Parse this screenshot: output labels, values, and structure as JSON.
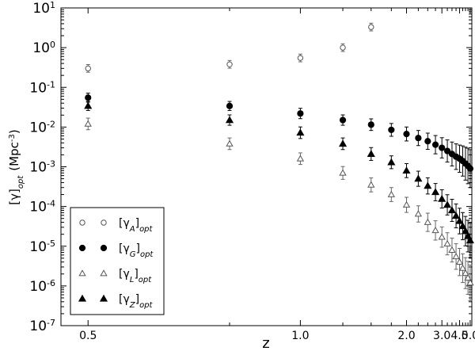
{
  "chart_data": {
    "type": "scatter",
    "xlabel": "z",
    "ylabel_base": "[γ]",
    "ylabel_sub": "opt",
    "ylabel_unit": "(Mpc",
    "ylabel_exp": "-3",
    "ylabel_close": ")",
    "x_scale": "reciprocal",
    "y_scale": "log",
    "xlim": [
      0.47,
      5.2
    ],
    "ylim": [
      1e-07,
      10
    ],
    "x_ticks": [
      0.5,
      1.0,
      2.0,
      3.0,
      4.0,
      5.0
    ],
    "x_tick_labels": [
      "0.5",
      "1.0",
      "2.0",
      "3.0",
      "4.0",
      "5.0"
    ],
    "y_ticks": [
      {
        "value": 10,
        "base": "10",
        "exp": "1"
      },
      {
        "value": 1,
        "base": "10",
        "exp": "0"
      },
      {
        "value": 0.1,
        "base": "10",
        "exp": "-1"
      },
      {
        "value": 0.01,
        "base": "10",
        "exp": "-2"
      },
      {
        "value": 0.001,
        "base": "10",
        "exp": "-3"
      },
      {
        "value": 0.0001,
        "base": "10",
        "exp": "-4"
      },
      {
        "value": 1e-05,
        "base": "10",
        "exp": "-5"
      },
      {
        "value": 1e-06,
        "base": "10",
        "exp": "-6"
      },
      {
        "value": 1e-07,
        "base": "10",
        "exp": "-7"
      }
    ],
    "grid": false,
    "legend_position": "bottom-left",
    "series": [
      {
        "key": "A",
        "label_base": "[γ",
        "label_sub": "A",
        "label_close": "]",
        "label_opt": "opt",
        "marker": "circle",
        "filled": false,
        "color": "#555555",
        "x": [
          0.5,
          0.75,
          1.0,
          1.25,
          1.5
        ],
        "y": [
          0.3,
          0.38,
          0.55,
          1.0,
          3.3
        ],
        "err_factor": 1.25
      },
      {
        "key": "G",
        "label_base": "[γ",
        "label_sub": "G",
        "label_close": "]",
        "label_opt": "opt",
        "marker": "circle",
        "filled": true,
        "color": "#000000",
        "x": [
          0.5,
          0.75,
          1.0,
          1.25,
          1.5,
          1.75,
          2.0,
          2.25,
          2.5,
          2.75,
          3.0,
          3.25,
          3.5,
          3.75,
          4.0,
          4.25,
          4.5,
          4.75,
          5.0
        ],
        "y": [
          0.055,
          0.034,
          0.022,
          0.015,
          0.0115,
          0.0085,
          0.0067,
          0.0053,
          0.0044,
          0.0036,
          0.003,
          0.0025,
          0.0021,
          0.0018,
          0.0016,
          0.0014,
          0.0012,
          0.00105,
          0.0009
        ],
        "err": [
          1.3,
          1.3,
          1.35,
          1.35,
          1.4,
          1.45,
          1.5,
          1.55,
          1.6,
          1.7,
          1.8,
          1.9,
          2.0,
          2.1,
          2.2,
          2.4,
          2.6,
          2.8,
          3.0
        ]
      },
      {
        "key": "L",
        "label_base": "[γ",
        "label_sub": "L",
        "label_close": "]",
        "label_opt": "opt",
        "marker": "triangle",
        "filled": false,
        "color": "#555555",
        "x": [
          0.5,
          0.75,
          1.0,
          1.25,
          1.5,
          1.75,
          2.0,
          2.25,
          2.5,
          2.75,
          3.0,
          3.25,
          3.5,
          3.75,
          4.0,
          4.25,
          4.5,
          4.75,
          5.0
        ],
        "y": [
          0.012,
          0.0038,
          0.0016,
          0.0007,
          0.00035,
          0.0002,
          0.00011,
          6.5e-05,
          4e-05,
          2.5e-05,
          1.7e-05,
          1.15e-05,
          8e-06,
          5.5e-06,
          4e-06,
          2.8e-06,
          2.1e-06,
          1.6e-06,
          1.2e-06
        ],
        "err": [
          1.4,
          1.4,
          1.4,
          1.45,
          1.5,
          1.5,
          1.55,
          1.6,
          1.7,
          1.75,
          1.8,
          1.9,
          2.0,
          2.1,
          2.2,
          2.3,
          2.45,
          2.6,
          2.8
        ]
      },
      {
        "key": "Z",
        "label_base": "[γ",
        "label_sub": "Z",
        "label_close": "]",
        "label_opt": "opt",
        "marker": "triangle",
        "filled": true,
        "color": "#000000",
        "x": [
          0.5,
          0.75,
          1.0,
          1.25,
          1.5,
          1.75,
          2.0,
          2.25,
          2.5,
          2.75,
          3.0,
          3.25,
          3.5,
          3.75,
          4.0,
          4.25,
          4.5,
          4.75,
          5.0
        ],
        "y": [
          0.034,
          0.015,
          0.0072,
          0.0038,
          0.0021,
          0.0013,
          0.0008,
          0.0005,
          0.00033,
          0.00023,
          0.000155,
          0.00011,
          8e-05,
          5.8e-05,
          4.3e-05,
          3.2e-05,
          2.4e-05,
          1.8e-05,
          1.4e-05
        ],
        "err": [
          1.3,
          1.35,
          1.4,
          1.4,
          1.45,
          1.45,
          1.5,
          1.55,
          1.6,
          1.65,
          1.7,
          1.8,
          1.9,
          2.0,
          2.1,
          2.2,
          2.35,
          2.5,
          2.7
        ]
      }
    ]
  }
}
